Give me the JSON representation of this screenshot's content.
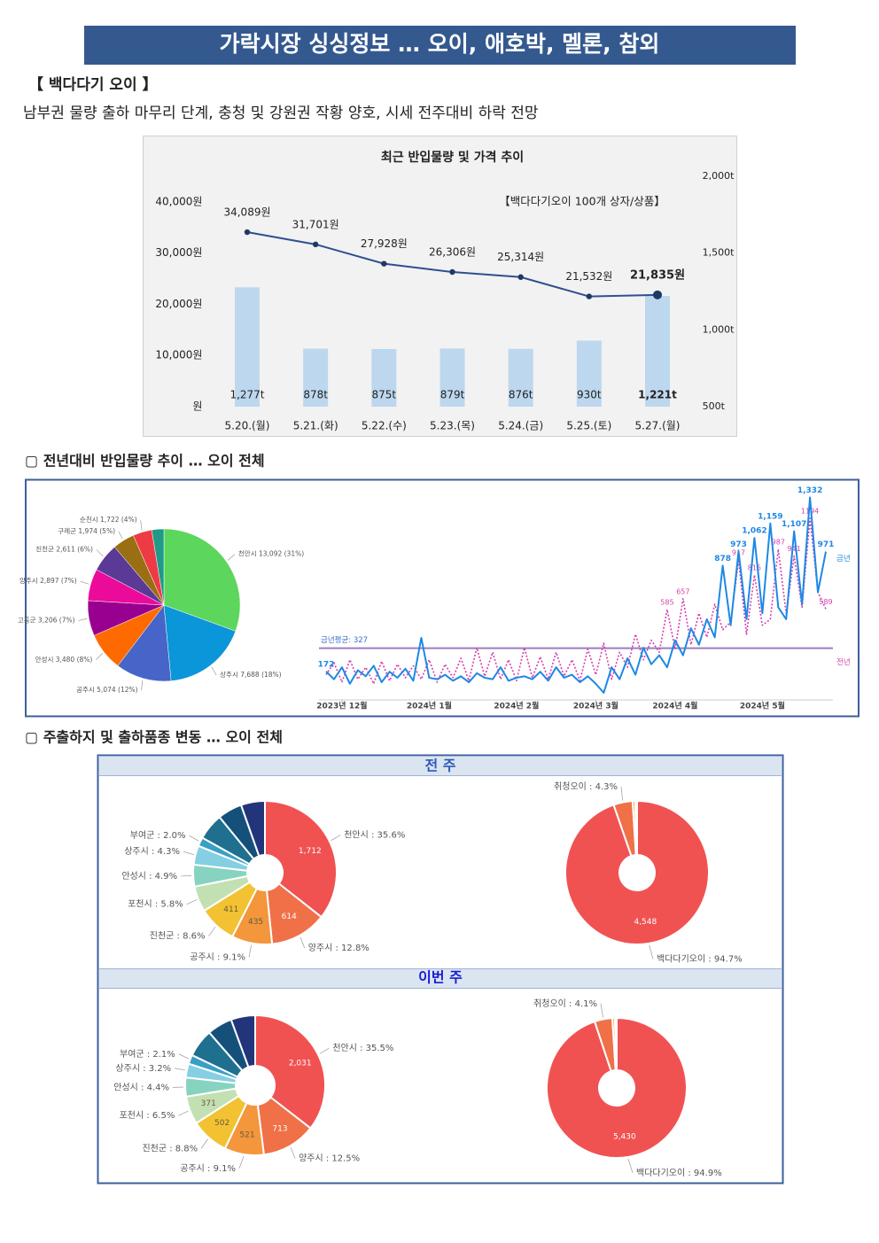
{
  "header": {
    "title": "가락시장 싱싱정보 … 오이, 애호박, 멜론, 참외"
  },
  "section1": {
    "heading": "【 백다다기 오이 】",
    "summary": "남부권 물량 출하 마무리 단계, 충청 및 강원권 작황 양호, 시세 전주대비 하락 전망"
  },
  "section2": {
    "heading": "▢  전년대비 반입물량 추이 … 오이 전체"
  },
  "section3": {
    "heading": "▢  주출하지 및 출하품종 변동 … 오이 전체"
  },
  "panels": [
    {
      "title": "전 주"
    },
    {
      "title": "이번 주"
    }
  ],
  "chart_data": [
    {
      "type": "combo",
      "title": "최근 반입물량 및 가격 추이",
      "annotation": "【백다다기오이 100개 상자/상품】",
      "categories": [
        "5.20.(월)",
        "5.21.(화)",
        "5.22.(수)",
        "5.23.(목)",
        "5.24.(금)",
        "5.25.(토)",
        "5.27.(월)"
      ],
      "series": [
        {
          "type": "bar",
          "axis": "y2",
          "color": "#bdd7ee",
          "values": [
            1277,
            878,
            875,
            879,
            876,
            930,
            1221
          ],
          "value_labels": [
            "1,277t",
            "878t",
            "875t",
            "879t",
            "876t",
            "930t",
            "1,221t"
          ]
        },
        {
          "type": "line",
          "color": "#1f3864",
          "values": [
            34089,
            31701,
            27928,
            26306,
            25314,
            21532,
            21835
          ],
          "value_labels": [
            "34,089원",
            "31,701원",
            "27,928원",
            "26,306원",
            "25,314원",
            "21,532원",
            "21,835원"
          ]
        }
      ],
      "ylim": [
        0,
        45000
      ],
      "yticks": [
        {
          "value": 0,
          "label": "원"
        },
        {
          "value": 10000,
          "label": "10,000원"
        },
        {
          "value": 20000,
          "label": "20,000원"
        },
        {
          "value": 30000,
          "label": "30,000원"
        },
        {
          "value": 40000,
          "label": "40,000원"
        }
      ],
      "y2lim": [
        500,
        2000
      ],
      "y2ticks": [
        {
          "value": 500,
          "label": "500t"
        },
        {
          "value": 1000,
          "label": "1,000t"
        },
        {
          "value": 1500,
          "label": "1,500t"
        },
        {
          "value": 2000,
          "label": "2,000t"
        }
      ],
      "grid": false
    },
    {
      "type": "pie",
      "categories": [
        "천안시",
        "상주시",
        "공주시",
        "안성시",
        "고흥군",
        "양주시",
        "진천군",
        "구례군",
        "순천시",
        null
      ],
      "values": [
        13092,
        7688,
        5074,
        3480,
        3206,
        2897,
        2611,
        1974,
        1722,
        1100
      ],
      "value_labels": [
        "13,092 (31%)",
        "7,688 (18%)",
        "5,074 (12%)",
        "3,480 (8%)",
        "3,206 (7%)",
        "2,897 (7%)",
        "2,611 (6%)",
        "1,974 (5%)",
        "1,722 (4%)",
        null
      ],
      "colors": [
        "#5cd65c",
        "#0a96d8",
        "#4765c8",
        "#ff6a00",
        "#99008f",
        "#ec0a9a",
        "#5a3a96",
        "#9a6e12",
        "#ee3a45",
        "#1f9a86"
      ]
    },
    {
      "type": "line",
      "xlim": [
        0,
        63
      ],
      "ylim": [
        0,
        1400
      ],
      "xticks": [
        {
          "value": 2,
          "label": "2023년 12월"
        },
        {
          "value": 13,
          "label": "2024년 1월"
        },
        {
          "value": 24,
          "label": "2024년 2월"
        },
        {
          "value": 34,
          "label": "2024년 3월"
        },
        {
          "value": 44,
          "label": "2024년 4월"
        },
        {
          "value": 55,
          "label": "2024년 5월"
        }
      ],
      "average": {
        "label": "금년평균: 327",
        "value": 327,
        "color": "#9b7fc0"
      },
      "series": [
        {
          "name": "금년",
          "color": "#1e88e5",
          "style": "solid",
          "values": [
            172,
            120,
            200,
            90,
            180,
            140,
            210,
            100,
            170,
            130,
            190,
            110,
            396,
            130,
            120,
            150,
            110,
            140,
            100,
            160,
            130,
            120,
            200,
            110,
            130,
            140,
            120,
            170,
            110,
            200,
            130,
            150,
            100,
            140,
            90,
            30,
            200,
            120,
            260,
            150,
            330,
            220,
            280,
            200,
            380,
            280,
            460,
            350,
            520,
            400,
            878,
            480,
            973,
            520,
            1062,
            560,
            1159,
            600,
            520,
            1107,
            620,
            1332,
            700,
            971
          ],
          "value_labels": [
            "172",
            null,
            null,
            null,
            null,
            null,
            null,
            null,
            null,
            null,
            null,
            null,
            null,
            null,
            null,
            null,
            null,
            null,
            null,
            null,
            null,
            null,
            null,
            null,
            null,
            null,
            null,
            null,
            null,
            null,
            null,
            null,
            null,
            null,
            null,
            null,
            null,
            null,
            null,
            null,
            null,
            null,
            null,
            null,
            null,
            null,
            null,
            null,
            null,
            null,
            "878",
            null,
            "973",
            null,
            "1,062",
            null,
            "1,159",
            null,
            null,
            "1,107",
            null,
            "1,332",
            null,
            "971"
          ]
        },
        {
          "name": "전년",
          "color": "#d63fae",
          "style": "dotted",
          "values": [
            150,
            230,
            100,
            250,
            120,
            200,
            90,
            240,
            110,
            220,
            130,
            210,
            120,
            250,
            100,
            220,
            130,
            260,
            110,
            330,
            140,
            300,
            120,
            250,
            110,
            330,
            130,
            270,
            120,
            300,
            140,
            250,
            110,
            320,
            150,
            360,
            120,
            300,
            200,
            420,
            250,
            380,
            300,
            585,
            320,
            657,
            350,
            560,
            400,
            620,
            450,
            500,
            917,
            420,
            815,
            480,
            520,
            987,
            560,
            941,
            600,
            1194,
            700,
            589
          ],
          "value_labels": [
            null,
            null,
            null,
            null,
            null,
            null,
            null,
            null,
            null,
            null,
            null,
            null,
            null,
            null,
            null,
            null,
            null,
            null,
            null,
            null,
            null,
            null,
            null,
            null,
            null,
            null,
            null,
            null,
            null,
            null,
            null,
            null,
            null,
            null,
            null,
            null,
            null,
            null,
            null,
            null,
            null,
            null,
            null,
            "585",
            null,
            "657",
            null,
            null,
            null,
            null,
            null,
            null,
            "917",
            null,
            "815",
            null,
            null,
            "987",
            null,
            "941",
            null,
            "1194",
            null,
            "589"
          ]
        }
      ]
    },
    {
      "type": "donut",
      "values": [
        35.6,
        12.8,
        9.1,
        8.6,
        5.8,
        4.9,
        4.3,
        2.0,
        6.0,
        5.5,
        5.4
      ],
      "value_labels": [
        "천안시 : 35.6%",
        "양주시 : 12.8%",
        "공주시 : 9.1%",
        "진천군 : 8.6%",
        "포천시 : 5.8%",
        "안성시 : 4.9%",
        "상주시 : 4.3%",
        "부여군 : 2.0%",
        null,
        null,
        null
      ],
      "counts": [
        1712,
        614,
        435,
        411,
        null,
        null,
        null,
        null,
        null,
        null,
        null
      ],
      "count_labels": [
        "1,712",
        "614",
        "435",
        "411",
        null,
        null,
        null,
        null,
        null,
        null,
        null
      ],
      "colors": [
        "#f05252",
        "#f07048",
        "#f3963c",
        "#f2c232",
        "#c3e0b2",
        "#86d3c0",
        "#86cfe2",
        "#3a9fc4",
        "#1f6f8f",
        "#15507a",
        "#23357a"
      ]
    },
    {
      "type": "donut",
      "values": [
        94.7,
        4.3,
        0.6,
        0.4
      ],
      "value_labels": [
        "백다다기오이 : 94.7%",
        "취청오이 : 4.3%",
        null,
        null
      ],
      "counts": [
        4548,
        null,
        null,
        null
      ],
      "count_labels": [
        "4,548",
        null,
        null,
        null
      ],
      "colors": [
        "#f05252",
        "#f07048",
        "#f3a13c",
        "#f2d060"
      ]
    },
    {
      "type": "donut",
      "values": [
        35.5,
        12.5,
        9.1,
        8.8,
        6.5,
        4.4,
        3.2,
        2.1,
        6.5,
        5.8,
        5.6
      ],
      "value_labels": [
        "천안시 : 35.5%",
        "양주시 : 12.5%",
        "공주시 : 9.1%",
        "진천군 : 8.8%",
        "포천시 : 6.5%",
        "안성시 : 4.4%",
        "상주시 : 3.2%",
        "부여군 : 2.1%",
        null,
        null,
        null
      ],
      "counts": [
        2031,
        713,
        521,
        502,
        371,
        null,
        null,
        null,
        null,
        null,
        null
      ],
      "count_labels": [
        "2,031",
        "713",
        "521",
        "502",
        "371",
        null,
        null,
        null,
        null,
        null,
        null
      ],
      "colors": [
        "#f05252",
        "#f07048",
        "#f3963c",
        "#f2c232",
        "#c3e0b2",
        "#86d3c0",
        "#86cfe2",
        "#3a9fc4",
        "#1f6f8f",
        "#15507a",
        "#23357a"
      ]
    },
    {
      "type": "donut",
      "values": [
        94.9,
        4.1,
        0.6,
        0.4
      ],
      "value_labels": [
        "백다다기오이 : 94.9%",
        "취청오이 : 4.1%",
        null,
        null
      ],
      "counts": [
        5430,
        null,
        null,
        null
      ],
      "count_labels": [
        "5,430",
        null,
        null,
        null
      ],
      "colors": [
        "#f05252",
        "#f07048",
        "#f3a13c",
        "#f2d060"
      ]
    }
  ]
}
